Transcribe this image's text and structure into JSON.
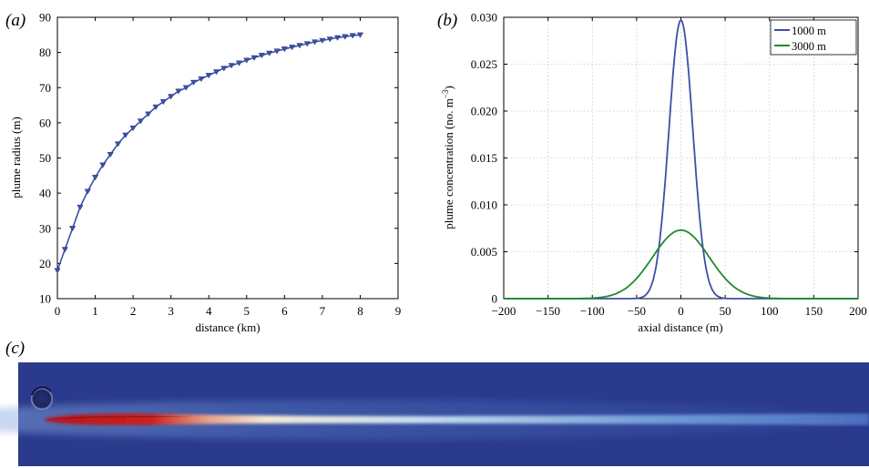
{
  "panel_labels": {
    "a": "(a)",
    "b": "(b)",
    "c": "(c)"
  },
  "chart_data": [
    {
      "panel": "a",
      "type": "line",
      "xlabel": "distance (km)",
      "ylabel": "plume radius (m)",
      "xlim": [
        0,
        9
      ],
      "ylim": [
        10,
        90
      ],
      "xticks": [
        0,
        1,
        2,
        3,
        4,
        5,
        6,
        7,
        8,
        9
      ],
      "yticks": [
        10,
        20,
        30,
        40,
        50,
        60,
        70,
        80,
        90
      ],
      "grid": false,
      "marker": "triangle-down",
      "color": "#3c50a6",
      "series": [
        {
          "x": [
            0,
            0.2,
            0.4,
            0.6,
            0.8,
            1.0,
            1.2,
            1.4,
            1.6,
            1.8,
            2.0,
            2.2,
            2.4,
            2.6,
            2.8,
            3.0,
            3.2,
            3.4,
            3.6,
            3.8,
            4.0,
            4.2,
            4.4,
            4.6,
            4.8,
            5.0,
            5.2,
            5.4,
            5.6,
            5.8,
            6.0,
            6.2,
            6.4,
            6.6,
            6.8,
            7.0,
            7.2,
            7.4,
            7.6,
            7.8,
            8.0
          ],
          "y": [
            18,
            24,
            30,
            36,
            40.5,
            44.5,
            48,
            51,
            54,
            56.5,
            58.5,
            60.5,
            62.5,
            64.5,
            66,
            67.5,
            69,
            70,
            71.5,
            72.5,
            73.5,
            74.5,
            75.5,
            76.3,
            77,
            77.8,
            78.5,
            79.2,
            79.8,
            80.4,
            81,
            81.5,
            82,
            82.5,
            83,
            83.4,
            83.8,
            84.2,
            84.5,
            84.8,
            85
          ]
        }
      ]
    },
    {
      "panel": "b",
      "type": "line",
      "xlabel": "axial distance (m)",
      "ylabel_main": "plume concentration (no. m",
      "ylabel_sup": "−3",
      "ylabel_end": ")",
      "xlim": [
        -200,
        200
      ],
      "ylim": [
        0,
        0.03
      ],
      "xticks": [
        -200,
        -150,
        -100,
        -50,
        0,
        50,
        100,
        150,
        200
      ],
      "xtick_labels": [
        "−200",
        "−150",
        "−100",
        "−50",
        "0",
        "50",
        "100",
        "150",
        "200"
      ],
      "yticks": [
        0,
        0.005,
        0.01,
        0.015,
        0.02,
        0.025,
        0.03
      ],
      "ytick_labels": [
        "0",
        "0.005",
        "0.010",
        "0.015",
        "0.020",
        "0.025",
        "0.030"
      ],
      "grid": true,
      "legend_position": "top-right",
      "series": [
        {
          "name": "1000 m",
          "color": "#3c50a6",
          "peak": 0.0297,
          "center": 0,
          "sigma": 13.5
        },
        {
          "name": "3000 m",
          "color": "#1f8a2c",
          "peak": 0.0073,
          "center": 0,
          "sigma": 32
        }
      ]
    }
  ],
  "panel_c": {
    "kind": "concentration field image",
    "background_color": "#2a3a8c",
    "plume_core_color": "#c8231a",
    "plume_fade_color": "#f3ead4"
  }
}
